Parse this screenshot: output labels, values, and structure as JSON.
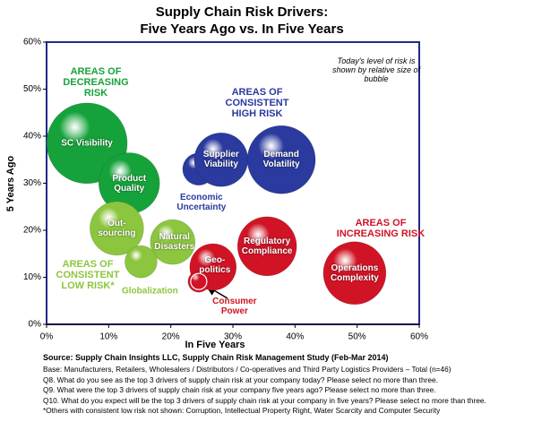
{
  "chart_data": {
    "type": "bubble",
    "title": "Supply Chain Risk Drivers:",
    "subtitle": "Five Years Ago vs. In Five Years",
    "x_label": "In Five Years",
    "y_label": "5 Years Ago",
    "annotation": "Today's level of risk is shown by relative size of bubble",
    "xlim": [
      0,
      60
    ],
    "ylim": [
      0,
      60
    ],
    "xticks": [
      {
        "value": 0,
        "label": "0%"
      },
      {
        "value": 10,
        "label": "10%"
      },
      {
        "value": 20,
        "label": "20%"
      },
      {
        "value": 30,
        "label": "30%"
      },
      {
        "value": 40,
        "label": "40%"
      },
      {
        "value": 50,
        "label": "50%"
      },
      {
        "value": 60,
        "label": "60%"
      }
    ],
    "yticks": [
      {
        "value": 0,
        "label": "0%"
      },
      {
        "value": 10,
        "label": "10%"
      },
      {
        "value": 20,
        "label": "20%"
      },
      {
        "value": 30,
        "label": "30%"
      },
      {
        "value": 40,
        "label": "40%"
      },
      {
        "value": 50,
        "label": "50%"
      },
      {
        "value": 60,
        "label": "60%"
      }
    ],
    "series": [
      {
        "name": "AREAS OF DECREASING RISK",
        "color": "#16a23a",
        "labels": [
          "SC Visibility",
          "Product Quality"
        ],
        "x": [
          6.5,
          13.3
        ],
        "y": [
          38.5,
          30
        ],
        "size": [
          45,
          34
        ]
      },
      {
        "name": "AREAS OF CONSISTENT HIGH RISK",
        "color": "#2b3a9e",
        "labels": [
          "Supplier Viability",
          "Demand Volatility",
          "Economic Uncertainty"
        ],
        "x": [
          28.1,
          37.8,
          24.5
        ],
        "y": [
          35,
          35,
          33
        ],
        "size": [
          30,
          38,
          18
        ]
      },
      {
        "name": "AREAS OF INCREASING RISK",
        "color": "#d01426",
        "labels": [
          "Regulatory Compliance",
          "Operations Complexity",
          "Geo-politics",
          "Consumer Power"
        ],
        "x": [
          35.5,
          49.6,
          26.8,
          24.5
        ],
        "y": [
          16.6,
          10.9,
          12.2,
          9.1
        ],
        "size": [
          33,
          35,
          26,
          12
        ]
      },
      {
        "name": "AREAS OF CONSISTENT LOW RISK*",
        "color": "#8cc63e",
        "labels": [
          "Out-sourcing",
          "Globalization",
          "Natural Disasters"
        ],
        "x": [
          11.3,
          15.2,
          20.3
        ],
        "y": [
          20.4,
          13.3,
          17.5
        ],
        "size": [
          30,
          18,
          25
        ]
      }
    ]
  },
  "notes": {
    "source": "Source: Supply Chain Insights LLC, Supply Chain Risk Management Study (Feb-Mar 2014)",
    "lines": [
      "Base: Manufacturers, Retailers, Wholesalers / Distributors / Co-operatives and Third Party Logistics Providers – Total (n=46)",
      "Q8. What do you see as the top 3 drivers of supply chain risk at your company today? Please select no more than three.",
      "Q9. What were the top 3 drivers of supply chain risk at your company five years ago? Please select no more than three.",
      "Q10. What do you expect will be the top 3 drivers of supply chain risk at your company in five years? Please select no more than three.",
      "*Others with consistent low risk not shown: Corruption, Intellectual Property Right, Water Scarcity and Computer Security"
    ]
  }
}
